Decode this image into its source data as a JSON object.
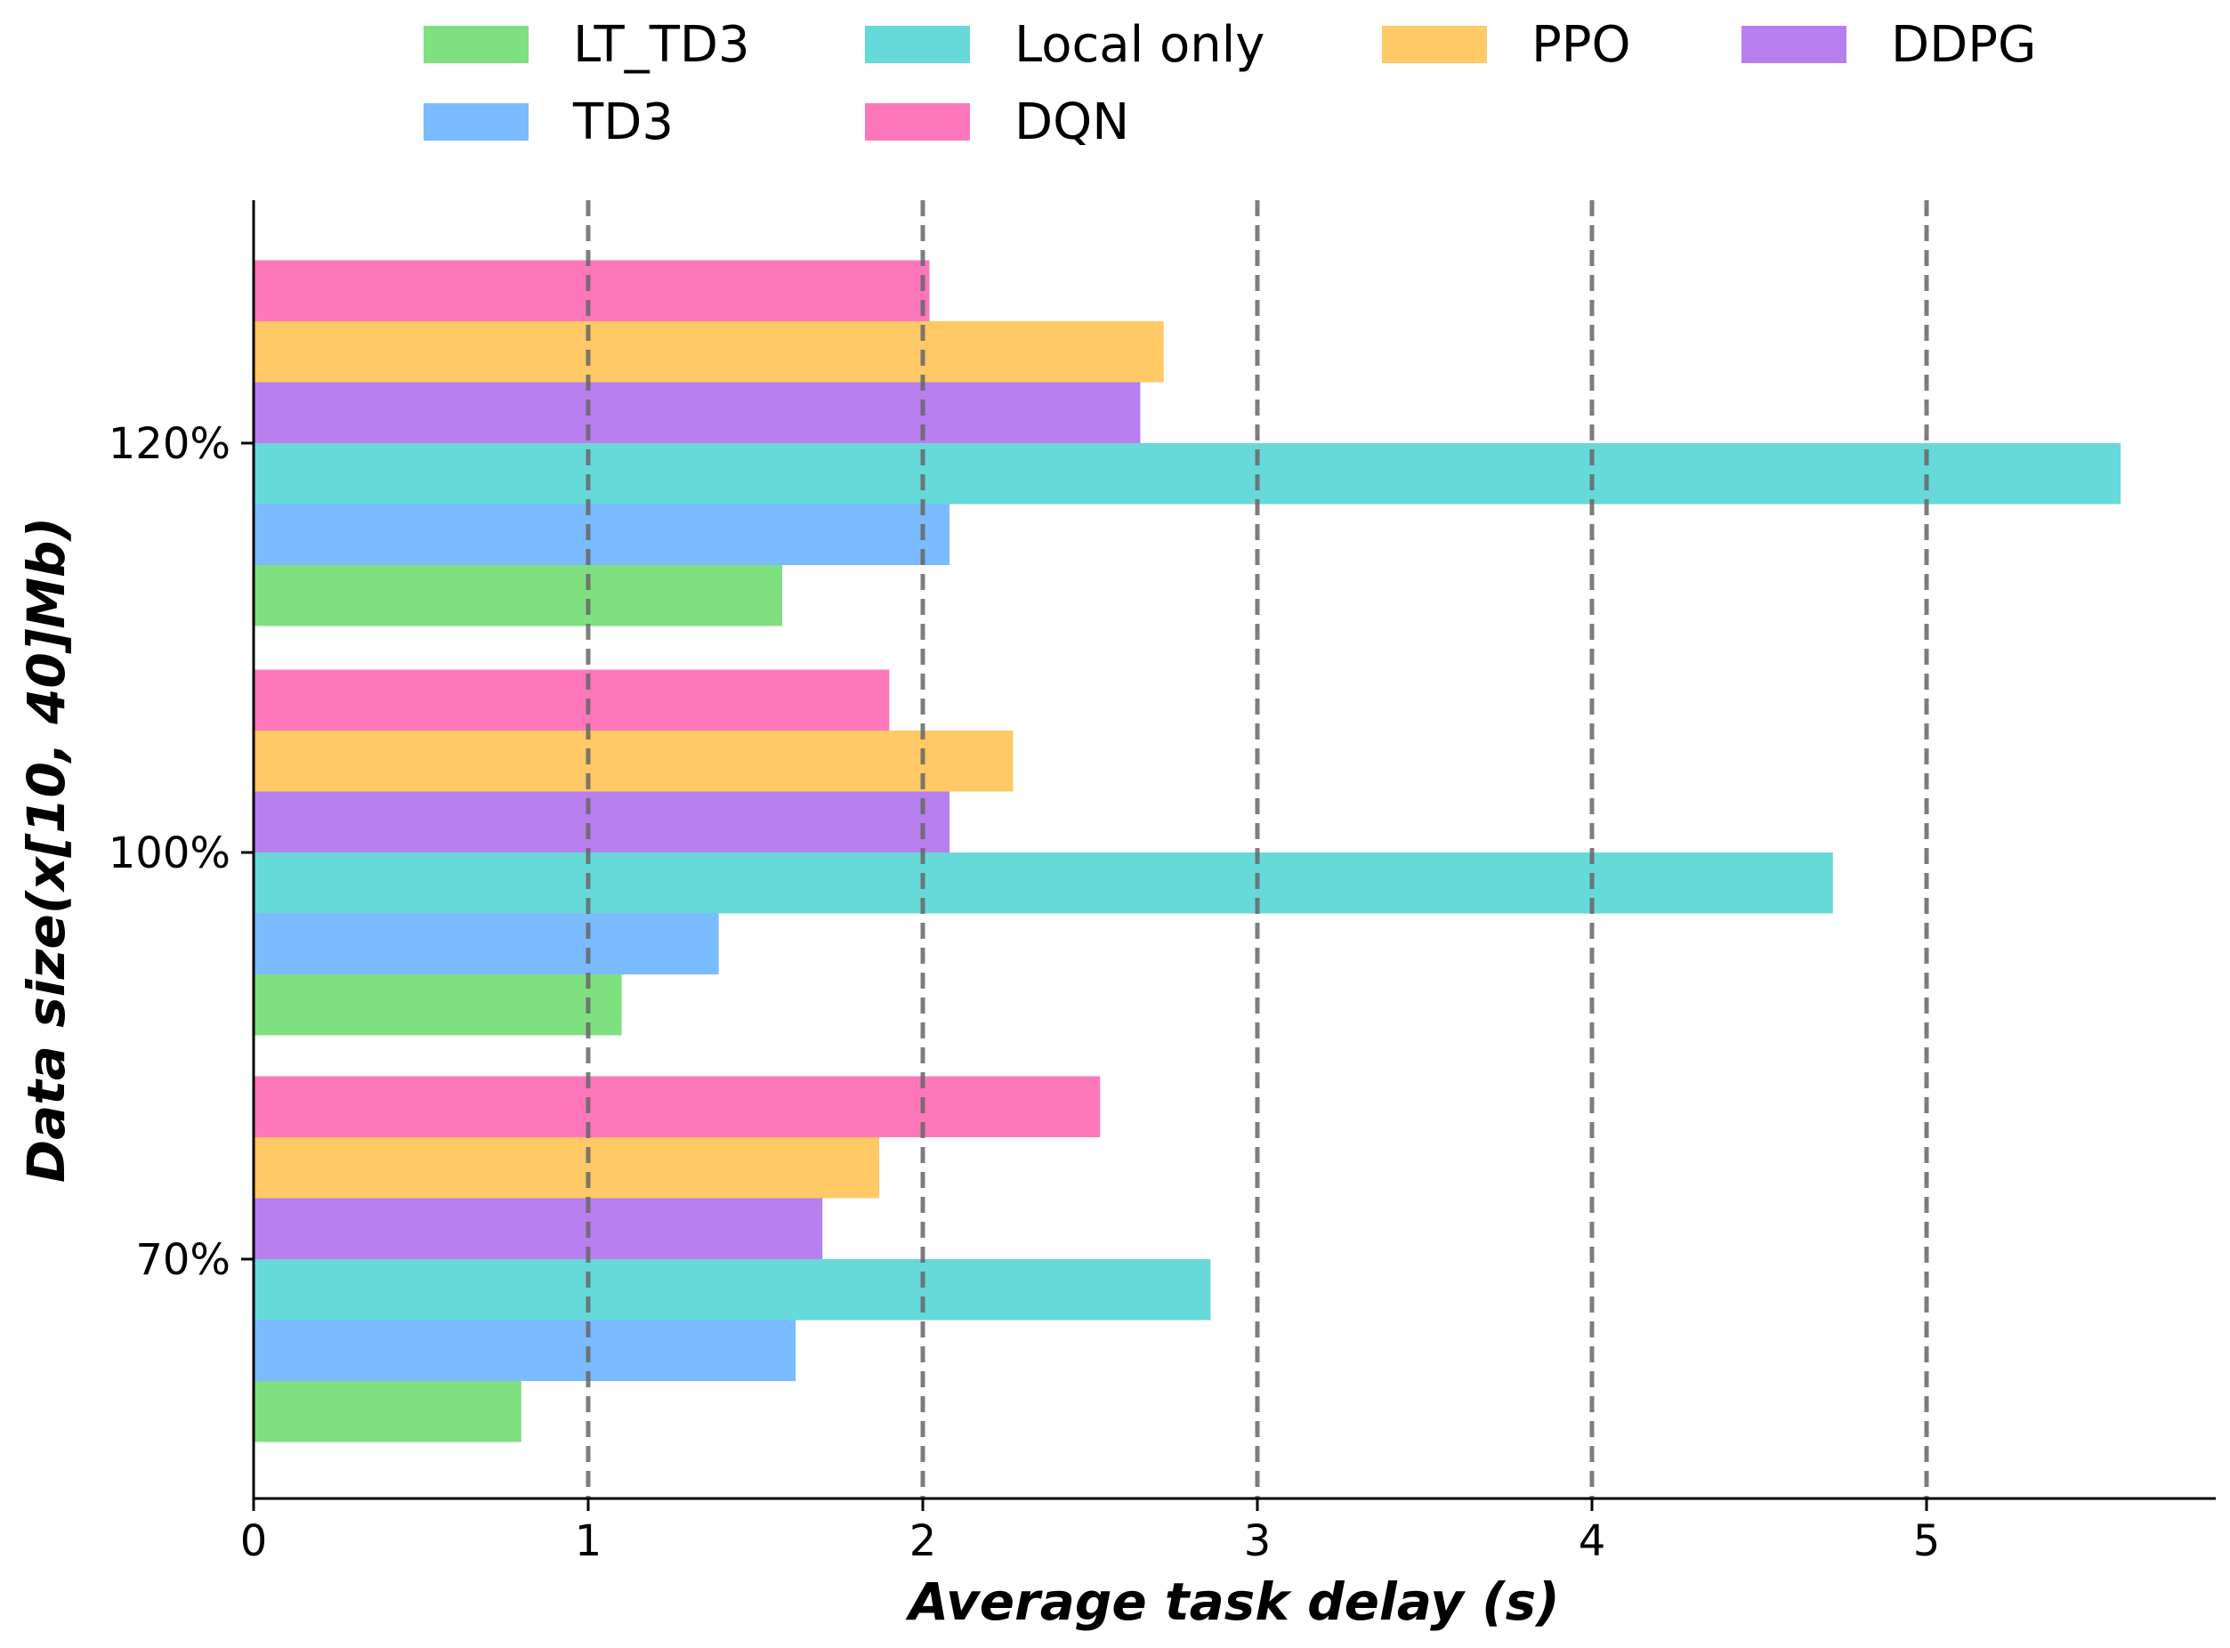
{
  "chart_data": {
    "type": "bar",
    "orientation": "horizontal",
    "title": "",
    "xlabel": "Average task delay (s)",
    "ylabel": "Data size(x[10, 40]Mb)",
    "categories": [
      "70%",
      "100%",
      "120%"
    ],
    "xlim": [
      0,
      5.85
    ],
    "xticks": [
      "0",
      "1",
      "2",
      "3",
      "4",
      "5"
    ],
    "grid": "vertical dashed",
    "legend_position": "top",
    "series": [
      {
        "name": "LT_TD3",
        "color": "#7fe07f",
        "values": [
          0.8,
          1.1,
          1.58
        ]
      },
      {
        "name": "TD3",
        "color": "#7bbbff",
        "values": [
          1.62,
          1.39,
          2.08
        ]
      },
      {
        "name": "Local only",
        "color": "#66d9d9",
        "values": [
          2.86,
          4.72,
          5.58
        ]
      },
      {
        "name": "DDPG",
        "color": "#b87fee",
        "values": [
          1.7,
          2.08,
          2.65
        ]
      },
      {
        "name": "PPO",
        "color": "#ffc966",
        "values": [
          1.87,
          2.27,
          2.72
        ]
      },
      {
        "name": "DQN",
        "color": "#ff77bb",
        "values": [
          2.53,
          1.9,
          2.02
        ]
      }
    ],
    "legend_order": [
      "LT_TD3",
      "Local only",
      "PPO",
      "DDPG",
      "TD3",
      "DQN"
    ]
  }
}
